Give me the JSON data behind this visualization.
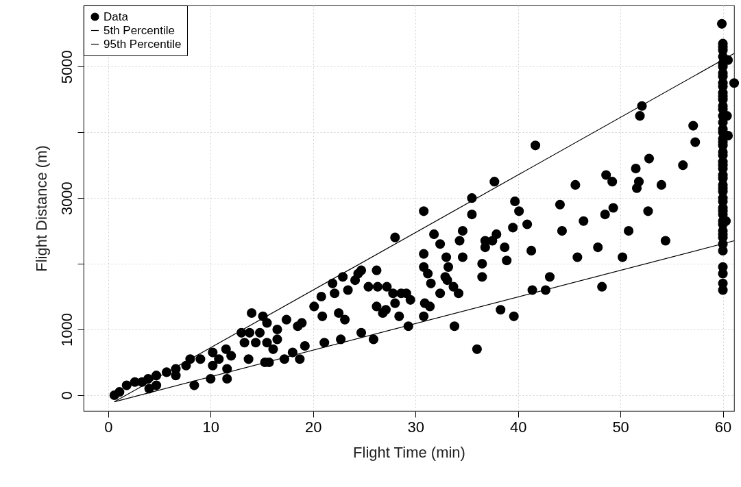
{
  "chart_data": {
    "type": "scatter",
    "xlabel": "Flight Time (min)",
    "ylabel": "Flight Distance (m)",
    "xlim": [
      -2.4,
      61.1
    ],
    "ylim": [
      -240,
      5930
    ],
    "xticks": [
      0,
      10,
      20,
      30,
      40,
      50,
      60
    ],
    "yticks": [
      0,
      1000,
      {
        "value": 2000,
        "label": null
      },
      3000,
      {
        "value": 4000,
        "label": null
      },
      5000
    ],
    "grid": true,
    "legend": "top left",
    "marker": "circle",
    "series": [
      {
        "name": "Data",
        "color": "#000000",
        "x": [
          0.6,
          1.1,
          1.8,
          2.6,
          3.3,
          3.9,
          4.0,
          4.7,
          4.7,
          5.7,
          6.6,
          6.6,
          7.6,
          8.0,
          8.4,
          9.0,
          10.0,
          10.2,
          10.2,
          10.8,
          11.5,
          11.6,
          11.6,
          12.0,
          13.0,
          13.3,
          13.7,
          13.8,
          14.0,
          14.4,
          14.8,
          15.1,
          15.3,
          15.5,
          15.5,
          15.7,
          16.1,
          16.5,
          16.5,
          17.2,
          17.4,
          18.0,
          18.5,
          18.7,
          18.9,
          19.2,
          20.1,
          20.8,
          20.9,
          21.1,
          21.9,
          22.1,
          22.5,
          22.7,
          22.9,
          23.1,
          23.4,
          24.1,
          24.4,
          24.7,
          24.7,
          25.4,
          25.9,
          26.2,
          26.2,
          26.3,
          26.8,
          27.1,
          27.2,
          27.8,
          28.0,
          28.0,
          28.4,
          28.6,
          29.1,
          29.3,
          29.5,
          30.8,
          30.8,
          30.8,
          30.8,
          30.9,
          31.2,
          31.4,
          31.5,
          31.8,
          32.4,
          32.4,
          32.9,
          33.0,
          33.1,
          33.2,
          33.7,
          33.8,
          34.2,
          34.3,
          34.6,
          34.6,
          35.5,
          35.5,
          36.0,
          36.5,
          36.5,
          36.8,
          36.8,
          37.5,
          37.7,
          37.9,
          38.3,
          38.7,
          38.9,
          39.5,
          39.6,
          39.7,
          40.1,
          40.9,
          41.3,
          41.4,
          41.7,
          42.7,
          43.1,
          44.1,
          44.3,
          45.6,
          45.8,
          46.4,
          47.8,
          48.2,
          48.5,
          48.6,
          49.2,
          49.3,
          50.2,
          50.8,
          51.5,
          51.6,
          51.8,
          51.9,
          52.1,
          52.7,
          52.8,
          54.0,
          54.4,
          56.1,
          57.1,
          57.3,
          59.9,
          61.1,
          60.5,
          60,
          60,
          60,
          60,
          60,
          60,
          60,
          60,
          60,
          60,
          60,
          60,
          60,
          60,
          60,
          60,
          60,
          60,
          60,
          60,
          60,
          60,
          60,
          60,
          60,
          60,
          60,
          60,
          60,
          60,
          60,
          60,
          60,
          60,
          60,
          60,
          60,
          60,
          60,
          60,
          60,
          60,
          60,
          60,
          60,
          60,
          60,
          60,
          60.4,
          60.5,
          60.3
        ],
        "values": [
          0,
          50,
          150,
          200,
          200,
          250,
          100,
          300,
          150,
          350,
          400,
          300,
          450,
          550,
          150,
          550,
          250,
          650,
          450,
          550,
          700,
          400,
          250,
          600,
          950,
          800,
          550,
          950,
          1250,
          800,
          950,
          1200,
          500,
          1100,
          800,
          500,
          700,
          1000,
          850,
          550,
          1150,
          650,
          1050,
          550,
          1100,
          750,
          1350,
          1500,
          1200,
          800,
          1700,
          1550,
          1250,
          850,
          1800,
          1150,
          1600,
          1750,
          1850,
          1900,
          950,
          1650,
          850,
          1900,
          1350,
          1650,
          1250,
          1300,
          1650,
          1550,
          2400,
          1400,
          1200,
          1550,
          1550,
          1050,
          1450,
          2800,
          2150,
          1950,
          1200,
          1400,
          1850,
          1350,
          1700,
          2450,
          2300,
          1550,
          1800,
          2100,
          1750,
          1950,
          1650,
          1050,
          1550,
          2350,
          2500,
          2100,
          3000,
          2750,
          700,
          2000,
          1800,
          2350,
          2250,
          2350,
          3250,
          2450,
          1300,
          2250,
          2050,
          2550,
          1200,
          2950,
          2800,
          2600,
          2200,
          1600,
          3800,
          1600,
          1800,
          2900,
          2500,
          3200,
          2100,
          2650,
          2250,
          1650,
          2750,
          3350,
          3250,
          2850,
          2100,
          2500,
          3450,
          3150,
          3250,
          4250,
          4400,
          2800,
          3600,
          3200,
          2350,
          3500,
          4100,
          3850,
          5650,
          4750,
          5100,
          5350,
          5300,
          5250,
          5150,
          5050,
          5000,
          4900,
          4850,
          4750,
          4700,
          4600,
          4550,
          4500,
          4400,
          4350,
          4250,
          4150,
          4050,
          4000,
          3900,
          3850,
          3800,
          3700,
          3650,
          3550,
          3500,
          3450,
          3350,
          3300,
          3200,
          3150,
          3100,
          3000,
          2950,
          2850,
          2800,
          2750,
          2650,
          2600,
          2500,
          2450,
          2400,
          2300,
          2200,
          1950,
          1850,
          1700,
          1600,
          4250,
          3950,
          2650
        ]
      },
      {
        "name": "5th Percentile",
        "type": "line",
        "color": "#000000",
        "line_style": "solid",
        "marker": "none",
        "x": [
          0.6,
          61.1
        ],
        "values": [
          -100,
          2350
        ]
      },
      {
        "name": "95th Percentile",
        "type": "line",
        "color": "#000000",
        "line_style": "solid",
        "marker": "none",
        "x": [
          0.6,
          61.1
        ],
        "values": [
          -100,
          5200
        ]
      }
    ]
  }
}
